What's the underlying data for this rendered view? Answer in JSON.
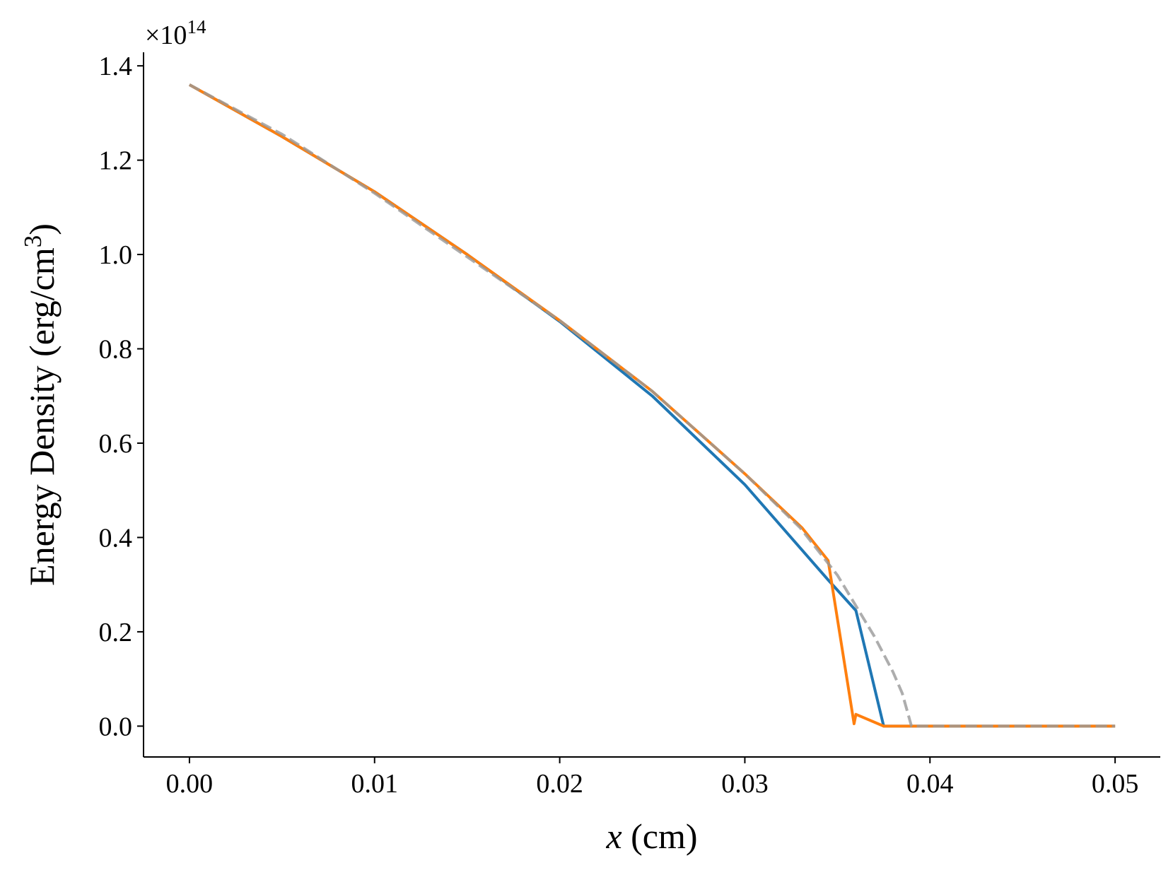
{
  "chart_data": {
    "type": "line",
    "x_label": {
      "italic": "x",
      "rest": " (cm)"
    },
    "y_label": {
      "main": "Energy Density (erg/cm",
      "sup": "3",
      "end": ")"
    },
    "y_offset": {
      "base": "×10",
      "exponent": "14"
    },
    "xlim": [
      -0.00248,
      0.05244
    ],
    "ylim": [
      -0.0654,
      1.4287
    ],
    "xticks": [
      {
        "value": 0,
        "label": "0.00"
      },
      0.01,
      0.02,
      0.03,
      0.04,
      0.05
    ],
    "yticks": [
      {
        "value": 0,
        "label": "0.0"
      },
      0.2,
      0.4,
      0.6,
      0.8,
      {
        "value": 1,
        "label": "1.0"
      },
      1.2,
      1.4
    ],
    "series": [
      {
        "color": "#1f77b4",
        "dash": "solid",
        "x": [
          0,
          0.005,
          0.01,
          0.015,
          0.02,
          0.025,
          0.03,
          0.0345,
          0.036,
          0.0375,
          0.05
        ],
        "values": [
          1.36,
          1.25,
          1.133,
          1.0,
          0.858,
          0.7,
          0.512,
          0.31,
          0.245,
          0,
          0
        ]
      },
      {
        "color": "#ff7f0e",
        "dash": "solid",
        "x": [
          0,
          0.005,
          0.01,
          0.015,
          0.02,
          0.025,
          0.03,
          0.0331,
          0.0345,
          0.0359,
          0.036,
          0.0375,
          0.05
        ],
        "values": [
          1.36,
          1.25,
          1.133,
          1.0,
          0.86,
          0.71,
          0.535,
          0.42,
          0.351,
          0.005,
          0.025,
          0,
          0
        ]
      },
      {
        "color": "#999999",
        "dash": "dashed",
        "x": [
          0,
          0.005,
          0.01,
          0.015,
          0.02,
          0.025,
          0.03,
          0.033,
          0.035,
          0.036,
          0.037,
          0.038,
          0.0385,
          0.039,
          0.05
        ],
        "values": [
          1.36,
          1.255,
          1.13,
          0.995,
          0.86,
          0.71,
          0.535,
          0.42,
          0.32,
          0.255,
          0.19,
          0.115,
          0.07,
          0,
          0
        ]
      }
    ]
  }
}
